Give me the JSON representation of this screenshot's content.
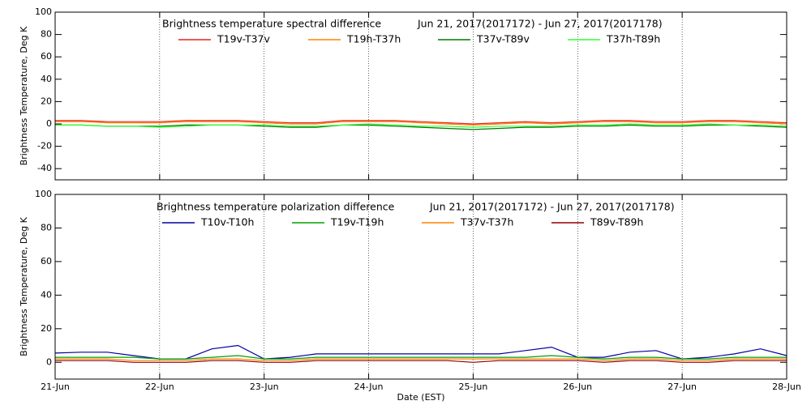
{
  "chart_data": [
    {
      "type": "line",
      "title": "Brightness temperature spectral difference",
      "subtitle": "Jun 21, 2017(2017172) - Jun 27, 2017(2017178)",
      "ylabel": "Brightness Temperature, Deg K",
      "x": [
        21,
        21.25,
        21.5,
        21.75,
        22,
        22.25,
        22.5,
        22.75,
        23,
        23.25,
        23.5,
        23.75,
        24,
        24.25,
        24.5,
        24.75,
        25,
        25.25,
        25.5,
        25.75,
        26,
        26.25,
        26.5,
        26.75,
        27,
        27.25,
        27.5,
        27.75,
        28
      ],
      "xlim": [
        21,
        28
      ],
      "xticks": [
        {
          "value": 21,
          "label": "21-Jun"
        },
        {
          "value": 22,
          "label": "22-Jun"
        },
        {
          "value": 23,
          "label": "23-Jun"
        },
        {
          "value": 24,
          "label": "24-Jun"
        },
        {
          "value": 25,
          "label": "25-Jun"
        },
        {
          "value": 26,
          "label": "26-Jun"
        },
        {
          "value": 27,
          "label": "27-Jun"
        },
        {
          "value": 28,
          "label": "28-Jun"
        }
      ],
      "ylim": [
        -50,
        100
      ],
      "yticks": [
        -40,
        -20,
        0,
        20,
        40,
        60,
        80,
        100
      ],
      "grid": true,
      "series": [
        {
          "name": "T19v-T37v",
          "color": "#e8231c",
          "values": [
            3,
            3,
            2,
            2,
            2,
            3,
            3,
            3,
            2,
            1,
            1,
            3,
            3,
            3,
            2,
            1,
            0,
            1,
            2,
            1,
            2,
            3,
            3,
            2,
            2,
            3,
            3,
            2,
            1
          ]
        },
        {
          "name": "T19h-T37h",
          "color": "#ff8000",
          "values": [
            2,
            2,
            1,
            1,
            1,
            2,
            2,
            2,
            1,
            0,
            0,
            2,
            2,
            2,
            1,
            0,
            -1,
            0,
            1,
            0,
            1,
            2,
            2,
            1,
            1,
            2,
            2,
            1,
            0
          ]
        },
        {
          "name": "T37v-T89v",
          "color": "#007700",
          "values": [
            -1,
            -1,
            -2,
            -2,
            -2,
            -1,
            -1,
            -1,
            -2,
            -3,
            -3,
            -1,
            -1,
            -2,
            -3,
            -4,
            -5,
            -4,
            -3,
            -3,
            -2,
            -2,
            -1,
            -2,
            -2,
            -1,
            -1,
            -2,
            -3
          ]
        },
        {
          "name": "T37h-T89h",
          "color": "#33ff33",
          "values": [
            -1,
            -1,
            -2,
            -2,
            -3,
            -2,
            -1,
            -1,
            -1,
            -2,
            -2,
            -1,
            0,
            -1,
            -2,
            -2,
            -3,
            -2,
            -2,
            -2,
            -1,
            -1,
            0,
            -1,
            -1,
            0,
            -1,
            -1,
            -2
          ]
        }
      ]
    },
    {
      "type": "line",
      "title": "Brightness temperature polarization difference",
      "subtitle": "Jun 21, 2017(2017172) - Jun 27, 2017(2017178)",
      "ylabel": "Brightness Temperature, Deg K",
      "xlabel": "Date (EST)",
      "x": [
        21,
        21.25,
        21.5,
        21.75,
        22,
        22.25,
        22.5,
        22.75,
        23,
        23.25,
        23.5,
        23.75,
        24,
        24.25,
        24.5,
        24.75,
        25,
        25.25,
        25.5,
        25.75,
        26,
        26.25,
        26.5,
        26.75,
        27,
        27.25,
        27.5,
        27.75,
        28
      ],
      "xlim": [
        21,
        28
      ],
      "xticks": [
        {
          "value": 21,
          "label": "21-Jun"
        },
        {
          "value": 22,
          "label": "22-Jun"
        },
        {
          "value": 23,
          "label": "23-Jun"
        },
        {
          "value": 24,
          "label": "24-Jun"
        },
        {
          "value": 25,
          "label": "25-Jun"
        },
        {
          "value": 26,
          "label": "26-Jun"
        },
        {
          "value": 27,
          "label": "27-Jun"
        },
        {
          "value": 28,
          "label": "28-Jun"
        }
      ],
      "ylim": [
        -10,
        100
      ],
      "yticks": [
        0,
        20,
        40,
        60,
        80,
        100
      ],
      "grid": true,
      "series": [
        {
          "name": "T10v-T10h",
          "color": "#0000a0",
          "values": [
            5.5,
            6,
            6,
            4,
            2,
            2,
            8,
            10,
            2,
            3,
            5,
            5,
            5,
            5,
            5,
            5,
            5,
            5,
            7,
            9,
            3,
            3,
            6,
            7,
            2,
            3,
            5,
            8,
            4
          ]
        },
        {
          "name": "T19v-T19h",
          "color": "#00a000",
          "values": [
            3,
            3,
            3,
            3,
            2,
            2,
            3,
            4,
            2,
            2,
            3,
            3,
            3,
            3,
            3,
            3,
            3,
            3,
            3,
            4,
            3,
            2,
            3,
            3,
            2,
            2,
            3,
            3,
            3
          ]
        },
        {
          "name": "T37v-T37h",
          "color": "#ff8000",
          "values": [
            2,
            2,
            2,
            1,
            1,
            1,
            2,
            2,
            1,
            1,
            2,
            2,
            2,
            2,
            2,
            2,
            2,
            2,
            2,
            2,
            2,
            1,
            2,
            2,
            1,
            1,
            2,
            2,
            2
          ]
        },
        {
          "name": "T89v-T89h",
          "color": "#900000",
          "values": [
            1,
            1,
            1,
            0,
            0,
            0,
            1,
            1,
            0,
            0,
            1,
            1,
            1,
            1,
            1,
            1,
            0,
            1,
            1,
            1,
            1,
            0,
            1,
            1,
            0,
            0,
            1,
            1,
            1
          ]
        }
      ]
    }
  ]
}
